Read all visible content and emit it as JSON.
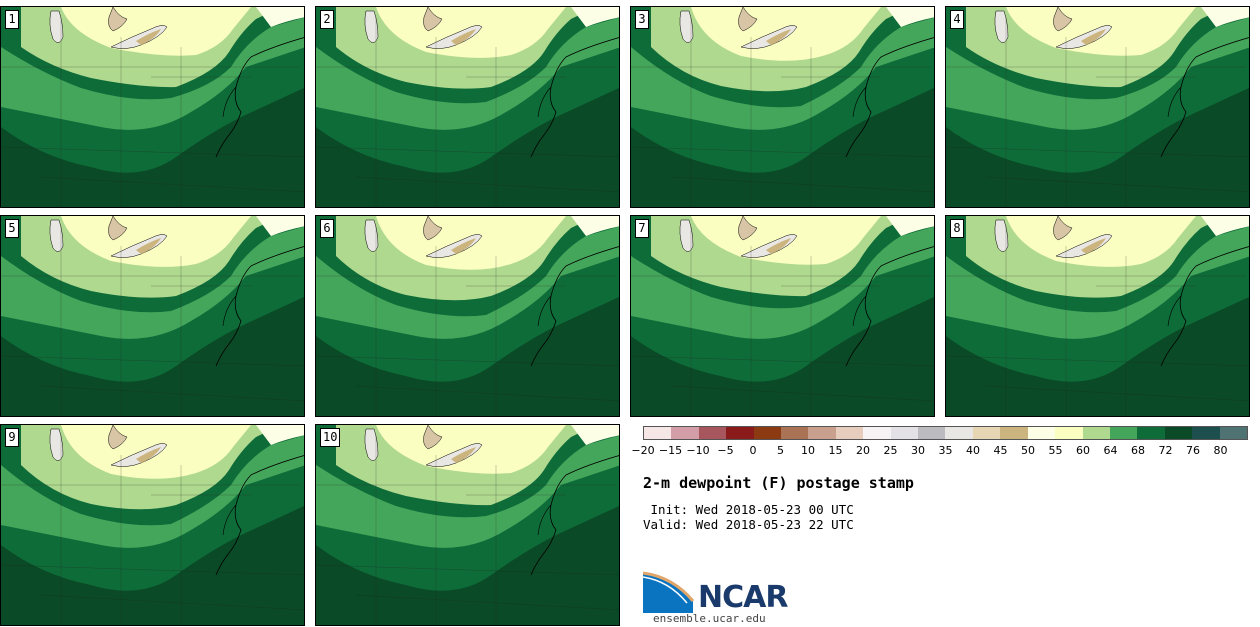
{
  "panels": [
    {
      "label": "1"
    },
    {
      "label": "2"
    },
    {
      "label": "3"
    },
    {
      "label": "4"
    },
    {
      "label": "5"
    },
    {
      "label": "6"
    },
    {
      "label": "7"
    },
    {
      "label": "8"
    },
    {
      "label": "9"
    },
    {
      "label": "10"
    }
  ],
  "colorbar": {
    "colors": [
      "#f6e6e6",
      "#d39ea8",
      "#a8565e",
      "#8b1a1a",
      "#8b3a12",
      "#ab7355",
      "#c9a08e",
      "#e6cdbd",
      "#f7f2f4",
      "#e3e1e5",
      "#bcbbbf",
      "#e9e7e3",
      "#e6d6b4",
      "#ccb47e",
      "#fdfee6",
      "#fafec0",
      "#afd98f",
      "#44a65b",
      "#0e6c39",
      "#0a4a26",
      "#1d4f4f",
      "#4f7272"
    ],
    "ticks": [
      "−20",
      "−15",
      "−10",
      "−5",
      "0",
      "5",
      "10",
      "15",
      "20",
      "25",
      "30",
      "35",
      "40",
      "45",
      "50",
      "55",
      "60",
      "64",
      "68",
      "72",
      "76",
      "80"
    ]
  },
  "title": "2-m dewpoint (F) postage stamp",
  "init": " Init: Wed 2018-05-23 00 UTC",
  "valid": "Valid: Wed 2018-05-23 22 UTC",
  "logo": {
    "name": "NCAR"
  },
  "site": "ensemble.ucar.edu"
}
